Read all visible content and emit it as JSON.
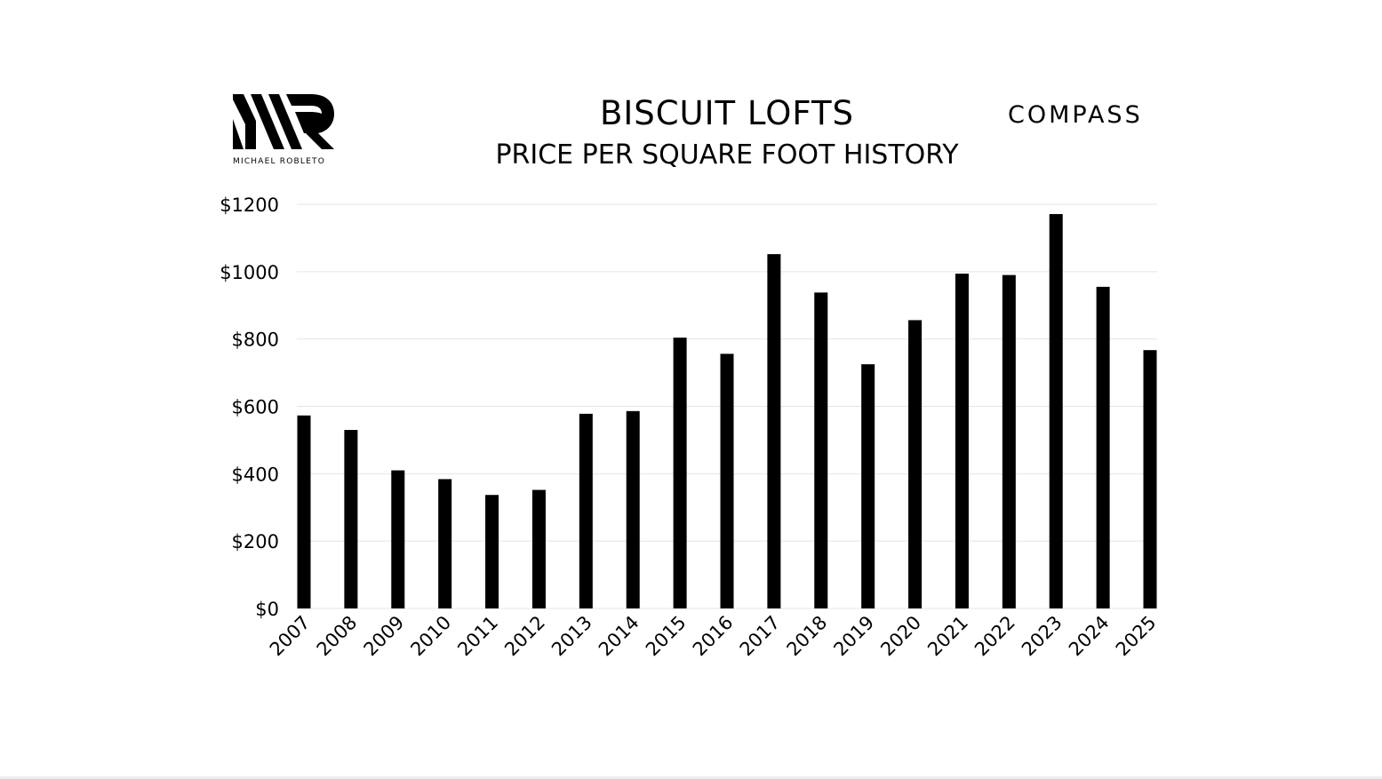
{
  "branding": {
    "left_logo_caption": "MICHAEL ROBLETO",
    "right_logo_text": "COMPASS"
  },
  "colors": {
    "bar": "#000000",
    "grid": "#e4e4e4",
    "background": "#ffffff"
  },
  "chart_data": {
    "type": "bar",
    "title": "BISCUIT LOFTS",
    "subtitle": "PRICE PER SQUARE FOOT HISTORY",
    "xlabel": "",
    "ylabel": "",
    "categories": [
      "2007",
      "2008",
      "2009",
      "2010",
      "2011",
      "2012",
      "2013",
      "2014",
      "2015",
      "2016",
      "2017",
      "2018",
      "2019",
      "2020",
      "2021",
      "2022",
      "2023",
      "2024",
      "2025"
    ],
    "values": [
      573,
      530,
      410,
      384,
      337,
      352,
      578,
      586,
      804,
      756,
      1052,
      938,
      725,
      856,
      994,
      990,
      1171,
      955,
      767
    ],
    "ylim": [
      0,
      1200
    ],
    "yticks": [
      0,
      200,
      400,
      600,
      800,
      1000,
      1200
    ],
    "ytick_labels": [
      "$0",
      "$200",
      "$400",
      "$600",
      "$800",
      "$1000",
      "$1200"
    ],
    "grid": true,
    "legend": "none"
  }
}
